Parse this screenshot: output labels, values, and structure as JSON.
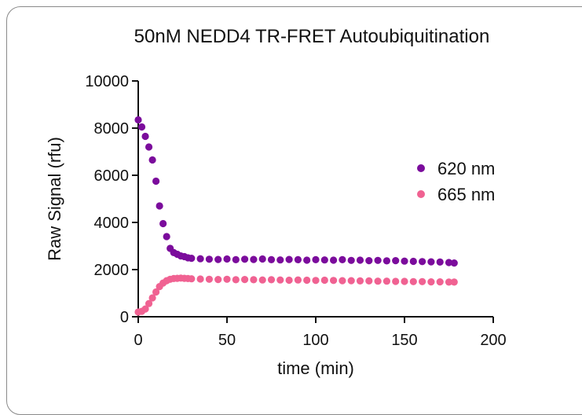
{
  "chart_data": {
    "type": "scatter",
    "title": "50nM NEDD4 TR-FRET Autoubiquitination",
    "xlabel": "time (min)",
    "ylabel": "Raw Signal (rfu)",
    "xlim": [
      0,
      200
    ],
    "ylim": [
      0,
      10000
    ],
    "xticks": [
      "0",
      "50",
      "100",
      "150",
      "200"
    ],
    "yticks": [
      "0",
      "2000",
      "4000",
      "6000",
      "8000",
      "10000"
    ],
    "grid": false,
    "legend_position": "right",
    "series": [
      {
        "name": "620 nm",
        "color": "#7B0C9C",
        "x": [
          0,
          2,
          4,
          6,
          8,
          10,
          12,
          14,
          16,
          18,
          20,
          22,
          24,
          26,
          28,
          30,
          35,
          40,
          45,
          50,
          55,
          60,
          65,
          70,
          75,
          80,
          85,
          90,
          95,
          100,
          105,
          110,
          115,
          120,
          125,
          130,
          135,
          140,
          145,
          150,
          155,
          160,
          165,
          170,
          175,
          178
        ],
        "y": [
          8350,
          8050,
          7650,
          7200,
          6650,
          5750,
          4700,
          3950,
          3400,
          2900,
          2720,
          2650,
          2580,
          2550,
          2500,
          2480,
          2460,
          2440,
          2430,
          2450,
          2420,
          2440,
          2430,
          2450,
          2420,
          2410,
          2430,
          2420,
          2400,
          2420,
          2410,
          2400,
          2420,
          2390,
          2400,
          2380,
          2390,
          2370,
          2380,
          2360,
          2350,
          2340,
          2330,
          2320,
          2300,
          2280
        ]
      },
      {
        "name": "665 nm",
        "color": "#F06292",
        "x": [
          0,
          2,
          4,
          6,
          8,
          10,
          12,
          14,
          16,
          18,
          20,
          22,
          24,
          26,
          28,
          30,
          35,
          40,
          45,
          50,
          55,
          60,
          65,
          70,
          75,
          80,
          85,
          90,
          95,
          100,
          105,
          110,
          115,
          120,
          125,
          130,
          135,
          140,
          145,
          150,
          155,
          160,
          165,
          170,
          175,
          178
        ],
        "y": [
          200,
          230,
          330,
          560,
          800,
          1050,
          1280,
          1430,
          1530,
          1590,
          1620,
          1630,
          1640,
          1630,
          1620,
          1610,
          1600,
          1590,
          1580,
          1590,
          1570,
          1580,
          1570,
          1560,
          1570,
          1560,
          1550,
          1560,
          1550,
          1540,
          1550,
          1540,
          1530,
          1530,
          1520,
          1520,
          1510,
          1510,
          1500,
          1500,
          1490,
          1490,
          1480,
          1480,
          1470,
          1470
        ]
      }
    ]
  }
}
